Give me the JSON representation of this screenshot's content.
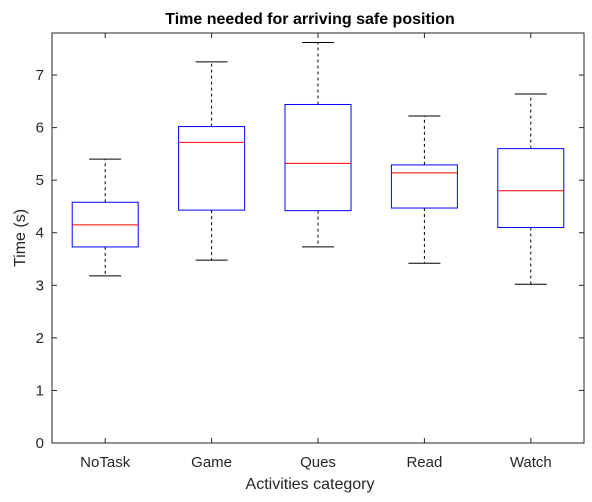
{
  "chart_data": {
    "type": "box",
    "title": "Time needed for arriving safe position",
    "xlabel": "Activities category",
    "ylabel": "Time (s)",
    "ylim": [
      0,
      7.8
    ],
    "yticks": [
      0,
      1,
      2,
      3,
      4,
      5,
      6,
      7
    ],
    "grid": false,
    "categories": [
      "NoTask",
      "Game",
      "Ques",
      "Read",
      "Watch"
    ],
    "boxes": [
      {
        "category": "NoTask",
        "min": 3.18,
        "q1": 3.73,
        "median": 4.15,
        "q3": 4.58,
        "max": 5.4
      },
      {
        "category": "Game",
        "min": 3.48,
        "q1": 4.43,
        "median": 5.72,
        "q3": 6.02,
        "max": 7.25
      },
      {
        "category": "Ques",
        "min": 3.73,
        "q1": 4.42,
        "median": 5.32,
        "q3": 6.44,
        "max": 7.62
      },
      {
        "category": "Read",
        "min": 3.42,
        "q1": 4.47,
        "median": 5.14,
        "q3": 5.29,
        "max": 6.22
      },
      {
        "category": "Watch",
        "min": 3.02,
        "q1": 4.1,
        "median": 4.8,
        "q3": 5.6,
        "max": 6.64
      }
    ],
    "colors": {
      "box": "#0000ff",
      "median": "#ff0000",
      "whisker": "#000000",
      "axis": "#262626"
    }
  }
}
